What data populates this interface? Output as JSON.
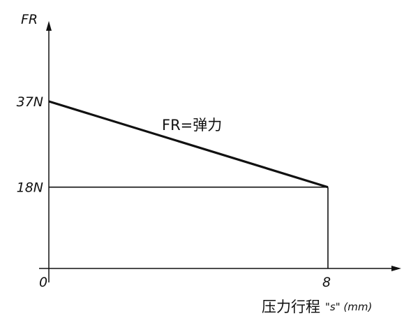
{
  "chart_data": {
    "type": "line",
    "title": "",
    "ylabel": "FR",
    "xlabel_main": "压力行程",
    "xlabel_unit": "\"s\" (mm)",
    "annotation": "FR=弹力",
    "xlim": [
      0,
      8.6
    ],
    "ylim": [
      0,
      50
    ],
    "x_ticks": [
      {
        "value": 0,
        "label": "0"
      },
      {
        "value": 8,
        "label": "8"
      }
    ],
    "y_ticks": [
      {
        "value": 18,
        "label": "18N"
      },
      {
        "value": 37,
        "label": "37N"
      }
    ],
    "series": [
      {
        "x": [
          0,
          8
        ],
        "y": [
          37,
          18
        ]
      }
    ],
    "reference_lines": [
      {
        "from": [
          0,
          18
        ],
        "to": [
          8,
          18
        ]
      },
      {
        "from": [
          8,
          18
        ],
        "to": [
          8,
          0
        ]
      }
    ],
    "grid": false
  }
}
